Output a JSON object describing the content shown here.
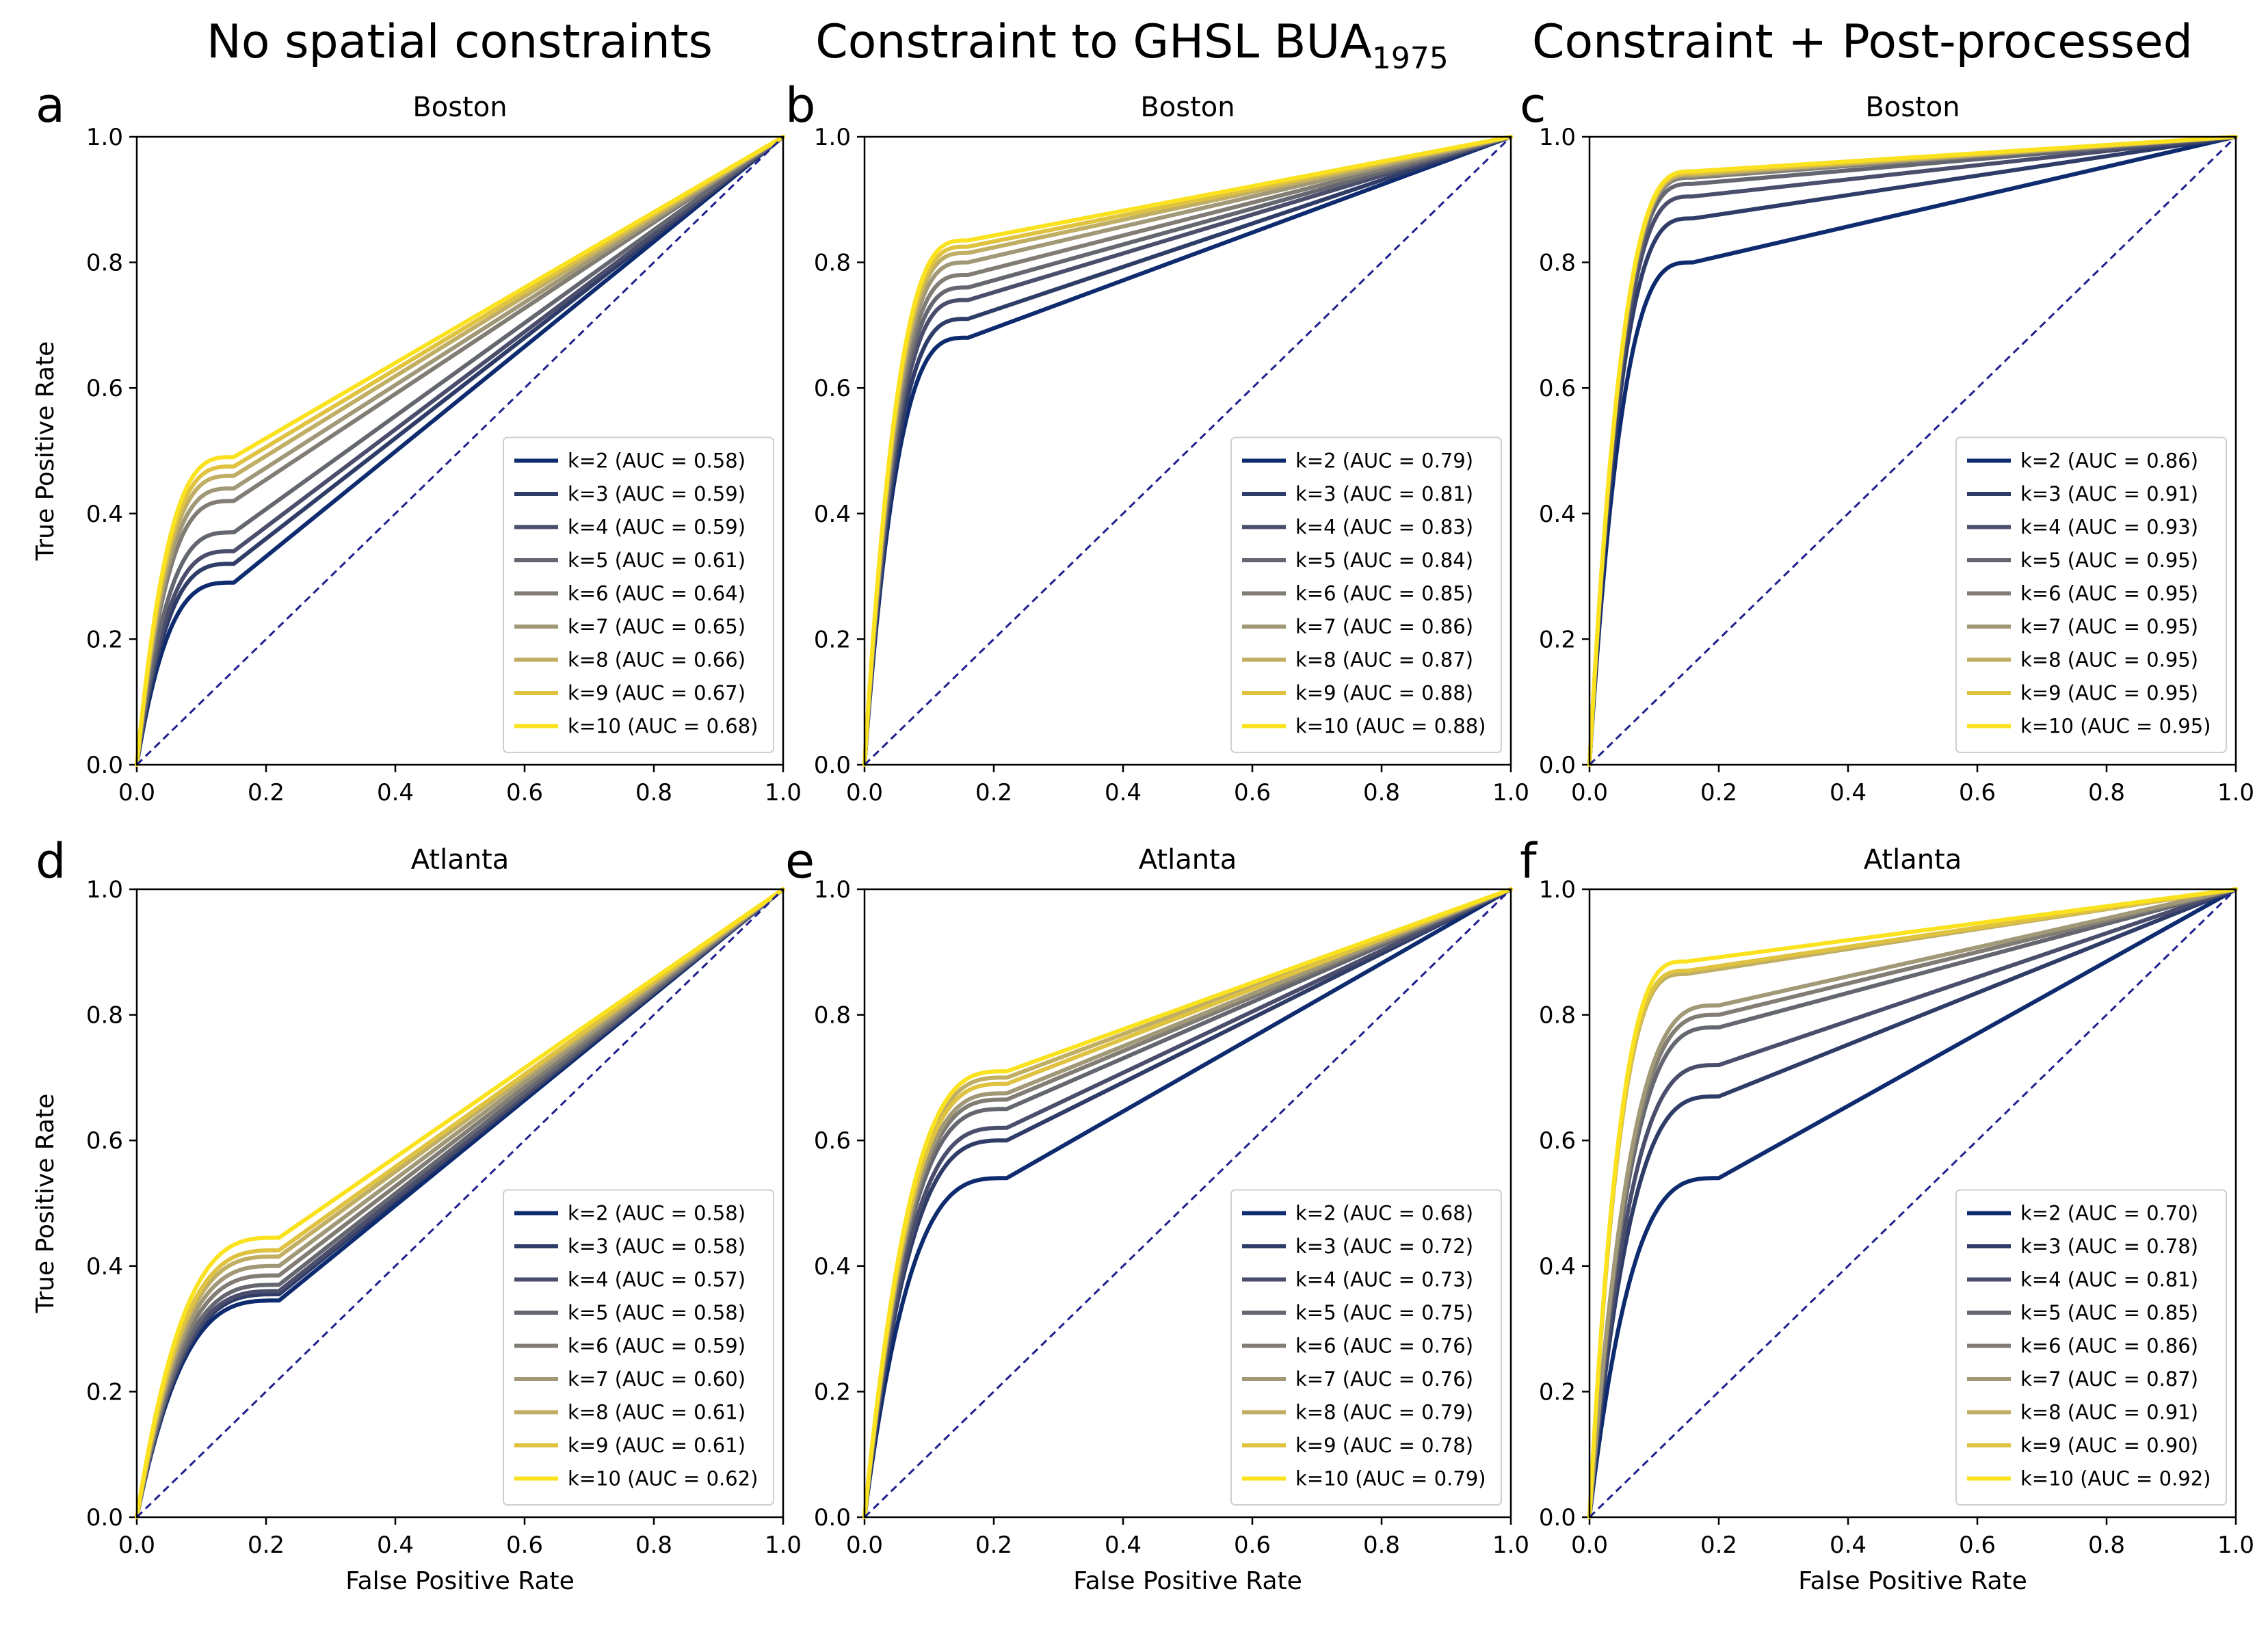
{
  "column_titles": [
    {
      "text": "No spatial constraints"
    },
    {
      "text": "Constraint to GHSL BUA",
      "sub": "1975"
    },
    {
      "text": "Constraint + Post-processed"
    }
  ],
  "axis": {
    "xlabel": "False Positive Rate",
    "ylabel": "True Positive Rate",
    "ticks": [
      "0.0",
      "0.2",
      "0.4",
      "0.6",
      "0.8",
      "1.0"
    ]
  },
  "colors": {
    "series": [
      "#0d2b6e",
      "#2f3c68",
      "#4a4e6c",
      "#646670",
      "#817c74",
      "#a09876",
      "#c0ae64",
      "#dfc240",
      "#fbe21f"
    ],
    "diagonal": "#1f1f8f"
  },
  "chart_data": [
    {
      "panel": "a",
      "title": "Boston",
      "type": "line",
      "xlabel": "",
      "ylabel": "True Positive Rate",
      "xlim": [
        0,
        1
      ],
      "ylim": [
        0,
        1
      ],
      "legend_location": "lower-right",
      "series": [
        {
          "name": "k=2 (AUC = 0.58)",
          "k": 2,
          "auc": 0.58,
          "knee": [
            0.15,
            0.29
          ]
        },
        {
          "name": "k=3 (AUC = 0.59)",
          "k": 3,
          "auc": 0.59,
          "knee": [
            0.15,
            0.32
          ]
        },
        {
          "name": "k=4 (AUC = 0.59)",
          "k": 4,
          "auc": 0.59,
          "knee": [
            0.15,
            0.34
          ]
        },
        {
          "name": "k=5 (AUC = 0.61)",
          "k": 5,
          "auc": 0.61,
          "knee": [
            0.15,
            0.37
          ]
        },
        {
          "name": "k=6 (AUC = 0.64)",
          "k": 6,
          "auc": 0.64,
          "knee": [
            0.15,
            0.42
          ]
        },
        {
          "name": "k=7 (AUC = 0.65)",
          "k": 7,
          "auc": 0.65,
          "knee": [
            0.15,
            0.44
          ]
        },
        {
          "name": "k=8 (AUC = 0.66)",
          "k": 8,
          "auc": 0.66,
          "knee": [
            0.15,
            0.46
          ]
        },
        {
          "name": "k=9 (AUC = 0.67)",
          "k": 9,
          "auc": 0.67,
          "knee": [
            0.15,
            0.475
          ]
        },
        {
          "name": "k=10 (AUC = 0.68)",
          "k": 10,
          "auc": 0.68,
          "knee": [
            0.15,
            0.49
          ]
        }
      ]
    },
    {
      "panel": "b",
      "title": "Boston",
      "type": "line",
      "xlabel": "",
      "ylabel": "",
      "xlim": [
        0,
        1
      ],
      "ylim": [
        0,
        1
      ],
      "legend_location": "lower-right",
      "series": [
        {
          "name": "k=2 (AUC = 0.79)",
          "k": 2,
          "auc": 0.79,
          "knee": [
            0.16,
            0.68
          ]
        },
        {
          "name": "k=3 (AUC = 0.81)",
          "k": 3,
          "auc": 0.81,
          "knee": [
            0.16,
            0.71
          ]
        },
        {
          "name": "k=4 (AUC = 0.83)",
          "k": 4,
          "auc": 0.83,
          "knee": [
            0.16,
            0.74
          ]
        },
        {
          "name": "k=5 (AUC = 0.84)",
          "k": 5,
          "auc": 0.84,
          "knee": [
            0.16,
            0.76
          ]
        },
        {
          "name": "k=6 (AUC = 0.85)",
          "k": 6,
          "auc": 0.85,
          "knee": [
            0.16,
            0.78
          ]
        },
        {
          "name": "k=7 (AUC = 0.86)",
          "k": 7,
          "auc": 0.86,
          "knee": [
            0.16,
            0.8
          ]
        },
        {
          "name": "k=8 (AUC = 0.87)",
          "k": 8,
          "auc": 0.87,
          "knee": [
            0.16,
            0.815
          ]
        },
        {
          "name": "k=9 (AUC = 0.88)",
          "k": 9,
          "auc": 0.88,
          "knee": [
            0.16,
            0.825
          ]
        },
        {
          "name": "k=10 (AUC = 0.88)",
          "k": 10,
          "auc": 0.88,
          "knee": [
            0.16,
            0.835
          ]
        }
      ]
    },
    {
      "panel": "c",
      "title": "Boston",
      "type": "line",
      "xlabel": "",
      "ylabel": "",
      "xlim": [
        0,
        1
      ],
      "ylim": [
        0,
        1
      ],
      "legend_location": "lower-right",
      "series": [
        {
          "name": "k=2 (AUC = 0.86)",
          "k": 2,
          "auc": 0.86,
          "knee": [
            0.16,
            0.8
          ]
        },
        {
          "name": "k=3 (AUC = 0.91)",
          "k": 3,
          "auc": 0.91,
          "knee": [
            0.16,
            0.87
          ]
        },
        {
          "name": "k=4 (AUC = 0.93)",
          "k": 4,
          "auc": 0.93,
          "knee": [
            0.16,
            0.905
          ]
        },
        {
          "name": "k=5 (AUC = 0.95)",
          "k": 5,
          "auc": 0.95,
          "knee": [
            0.16,
            0.925
          ]
        },
        {
          "name": "k=6 (AUC = 0.95)",
          "k": 6,
          "auc": 0.95,
          "knee": [
            0.16,
            0.935
          ]
        },
        {
          "name": "k=7 (AUC = 0.95)",
          "k": 7,
          "auc": 0.95,
          "knee": [
            0.16,
            0.938
          ]
        },
        {
          "name": "k=8 (AUC = 0.95)",
          "k": 8,
          "auc": 0.95,
          "knee": [
            0.16,
            0.94
          ]
        },
        {
          "name": "k=9 (AUC = 0.95)",
          "k": 9,
          "auc": 0.95,
          "knee": [
            0.16,
            0.942
          ]
        },
        {
          "name": "k=10 (AUC = 0.95)",
          "k": 10,
          "auc": 0.95,
          "knee": [
            0.16,
            0.945
          ]
        }
      ]
    },
    {
      "panel": "d",
      "title": "Atlanta",
      "type": "line",
      "xlabel": "False Positive Rate",
      "ylabel": "True Positive Rate",
      "xlim": [
        0,
        1
      ],
      "ylim": [
        0,
        1
      ],
      "legend_location": "lower-right",
      "series": [
        {
          "name": "k=2 (AUC = 0.58)",
          "k": 2,
          "auc": 0.58,
          "knee": [
            0.22,
            0.345
          ]
        },
        {
          "name": "k=3 (AUC = 0.58)",
          "k": 3,
          "auc": 0.58,
          "knee": [
            0.22,
            0.355
          ]
        },
        {
          "name": "k=4 (AUC = 0.57)",
          "k": 4,
          "auc": 0.57,
          "knee": [
            0.22,
            0.36
          ]
        },
        {
          "name": "k=5 (AUC = 0.58)",
          "k": 5,
          "auc": 0.58,
          "knee": [
            0.22,
            0.37
          ]
        },
        {
          "name": "k=6 (AUC = 0.59)",
          "k": 6,
          "auc": 0.59,
          "knee": [
            0.22,
            0.385
          ]
        },
        {
          "name": "k=7 (AUC = 0.60)",
          "k": 7,
          "auc": 0.6,
          "knee": [
            0.22,
            0.4
          ]
        },
        {
          "name": "k=8 (AUC = 0.61)",
          "k": 8,
          "auc": 0.61,
          "knee": [
            0.22,
            0.415
          ]
        },
        {
          "name": "k=9 (AUC = 0.61)",
          "k": 9,
          "auc": 0.61,
          "knee": [
            0.22,
            0.425
          ]
        },
        {
          "name": "k=10 (AUC = 0.62)",
          "k": 10,
          "auc": 0.62,
          "knee": [
            0.22,
            0.445
          ]
        }
      ]
    },
    {
      "panel": "e",
      "title": "Atlanta",
      "type": "line",
      "xlabel": "False Positive Rate",
      "ylabel": "",
      "xlim": [
        0,
        1
      ],
      "ylim": [
        0,
        1
      ],
      "legend_location": "lower-right",
      "series": [
        {
          "name": "k=2 (AUC = 0.68)",
          "k": 2,
          "auc": 0.68,
          "knee": [
            0.22,
            0.54
          ]
        },
        {
          "name": "k=3 (AUC = 0.72)",
          "k": 3,
          "auc": 0.72,
          "knee": [
            0.22,
            0.6
          ]
        },
        {
          "name": "k=4 (AUC = 0.73)",
          "k": 4,
          "auc": 0.73,
          "knee": [
            0.22,
            0.62
          ]
        },
        {
          "name": "k=5 (AUC = 0.75)",
          "k": 5,
          "auc": 0.75,
          "knee": [
            0.22,
            0.65
          ]
        },
        {
          "name": "k=6 (AUC = 0.76)",
          "k": 6,
          "auc": 0.76,
          "knee": [
            0.22,
            0.665
          ]
        },
        {
          "name": "k=7 (AUC = 0.76)",
          "k": 7,
          "auc": 0.76,
          "knee": [
            0.22,
            0.675
          ]
        },
        {
          "name": "k=8 (AUC = 0.79)",
          "k": 8,
          "auc": 0.79,
          "knee": [
            0.22,
            0.7
          ]
        },
        {
          "name": "k=9 (AUC = 0.78)",
          "k": 9,
          "auc": 0.78,
          "knee": [
            0.22,
            0.69
          ]
        },
        {
          "name": "k=10 (AUC = 0.79)",
          "k": 10,
          "auc": 0.79,
          "knee": [
            0.22,
            0.71
          ]
        }
      ]
    },
    {
      "panel": "f",
      "title": "Atlanta",
      "type": "line",
      "xlabel": "False Positive Rate",
      "ylabel": "",
      "xlim": [
        0,
        1
      ],
      "ylim": [
        0,
        1
      ],
      "legend_location": "lower-right",
      "series": [
        {
          "name": "k=2 (AUC = 0.70)",
          "k": 2,
          "auc": 0.7,
          "knee": [
            0.2,
            0.54
          ]
        },
        {
          "name": "k=3 (AUC = 0.78)",
          "k": 3,
          "auc": 0.78,
          "knee": [
            0.2,
            0.67
          ]
        },
        {
          "name": "k=4 (AUC = 0.81)",
          "k": 4,
          "auc": 0.81,
          "knee": [
            0.2,
            0.72
          ]
        },
        {
          "name": "k=5 (AUC = 0.85)",
          "k": 5,
          "auc": 0.85,
          "knee": [
            0.2,
            0.78
          ]
        },
        {
          "name": "k=6 (AUC = 0.86)",
          "k": 6,
          "auc": 0.86,
          "knee": [
            0.2,
            0.8
          ]
        },
        {
          "name": "k=7 (AUC = 0.87)",
          "k": 7,
          "auc": 0.87,
          "knee": [
            0.2,
            0.815
          ]
        },
        {
          "name": "k=8 (AUC = 0.91)",
          "k": 8,
          "auc": 0.91,
          "knee": [
            0.15,
            0.865
          ]
        },
        {
          "name": "k=9 (AUC = 0.90)",
          "k": 9,
          "auc": 0.9,
          "knee": [
            0.15,
            0.87
          ]
        },
        {
          "name": "k=10 (AUC = 0.92)",
          "k": 10,
          "auc": 0.92,
          "knee": [
            0.15,
            0.885
          ]
        }
      ]
    }
  ]
}
